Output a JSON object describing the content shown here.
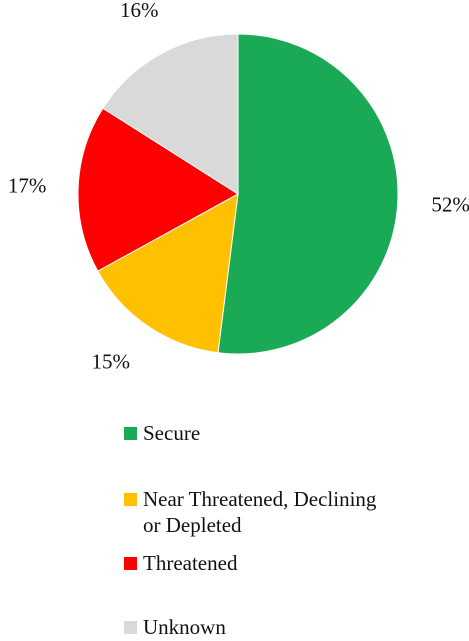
{
  "chart_data": {
    "type": "pie",
    "categories": [
      "Secure",
      "Near Threatened, Declining or Depleted",
      "Threatened",
      "Unknown"
    ],
    "values": [
      52,
      15,
      17,
      16
    ],
    "value_labels": [
      "52%",
      "15%",
      "17%",
      "16%"
    ],
    "colors": [
      "#1aaa55",
      "#ffc000",
      "#ff0000",
      "#d9d9d9"
    ],
    "start_angle_deg": 0,
    "direction": "clockwise",
    "legend_position": "bottom",
    "title": ""
  },
  "legend": [
    {
      "label": "Secure",
      "color": "#1aaa55"
    },
    {
      "label": "Near Threatened, Declining\nor Depleted",
      "color": "#ffc000"
    },
    {
      "label": "Threatened",
      "color": "#ff0000"
    },
    {
      "label": "Unknown",
      "color": "#d9d9d9"
    }
  ]
}
